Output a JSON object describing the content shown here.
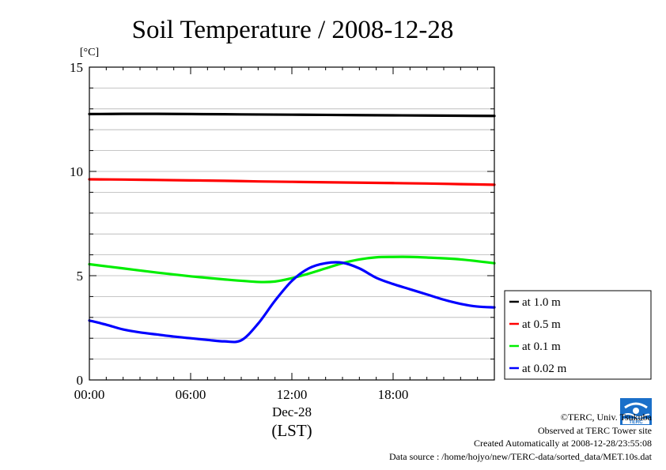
{
  "chart_data": {
    "type": "line",
    "title": "Soil Temperature / 2008-12-28",
    "ylabel": "[°C]",
    "xlabel": "(LST)",
    "date_label": "Dec-28",
    "ylim": [
      0,
      15
    ],
    "xlim": [
      0,
      24
    ],
    "yticks": [
      0,
      5,
      10,
      15
    ],
    "y_minor_step": 1,
    "xticks": [
      0,
      6,
      12,
      18
    ],
    "xtick_labels": [
      "00:00",
      "06:00",
      "12:00",
      "18:00"
    ],
    "grid": true,
    "legend_position": "right",
    "series": [
      {
        "name": "at 1.0 m",
        "color": "#000000",
        "x": [
          0,
          2,
          4,
          6,
          8,
          10,
          12,
          14,
          16,
          18,
          20,
          22,
          24
        ],
        "values": [
          12.75,
          12.76,
          12.76,
          12.75,
          12.74,
          12.73,
          12.72,
          12.71,
          12.7,
          12.69,
          12.68,
          12.67,
          12.66
        ]
      },
      {
        "name": "at 0.5 m",
        "color": "#ff0000",
        "x": [
          0,
          2,
          4,
          6,
          8,
          10,
          12,
          14,
          16,
          18,
          20,
          22,
          24
        ],
        "values": [
          9.62,
          9.61,
          9.59,
          9.57,
          9.55,
          9.52,
          9.5,
          9.48,
          9.46,
          9.44,
          9.42,
          9.39,
          9.36
        ]
      },
      {
        "name": "at 0.1 m",
        "color": "#00ee00",
        "x": [
          0,
          2,
          4,
          6,
          8,
          10,
          11,
          12,
          13,
          14,
          15,
          16,
          17,
          18,
          19,
          20,
          22,
          24
        ],
        "values": [
          5.55,
          5.35,
          5.15,
          4.97,
          4.82,
          4.7,
          4.72,
          4.88,
          5.1,
          5.35,
          5.6,
          5.78,
          5.88,
          5.9,
          5.9,
          5.87,
          5.78,
          5.6
        ]
      },
      {
        "name": "at 0.02 m",
        "color": "#0000ff",
        "x": [
          0,
          1,
          2,
          3,
          4,
          5,
          6,
          7,
          8,
          9,
          10,
          11,
          12,
          13,
          14,
          15,
          16,
          17,
          18,
          19,
          20,
          21,
          22,
          23,
          24
        ],
        "values": [
          2.85,
          2.65,
          2.42,
          2.28,
          2.18,
          2.08,
          2.0,
          1.92,
          1.85,
          1.9,
          2.7,
          3.8,
          4.75,
          5.35,
          5.6,
          5.62,
          5.35,
          4.9,
          4.6,
          4.35,
          4.1,
          3.85,
          3.65,
          3.52,
          3.48
        ]
      }
    ]
  },
  "footer": {
    "copyright": "©TERC, Univ. Tsukuba",
    "observed": "Observed at TERC Tower site",
    "created": "Created Automatically at 2008-12-28/23:55:08",
    "source": "Data source : /home/hojyo/new/TERC-data/sorted_data/MET.10s.dat"
  },
  "logo": {
    "text": "TERC",
    "color": "#1a6fc9"
  }
}
